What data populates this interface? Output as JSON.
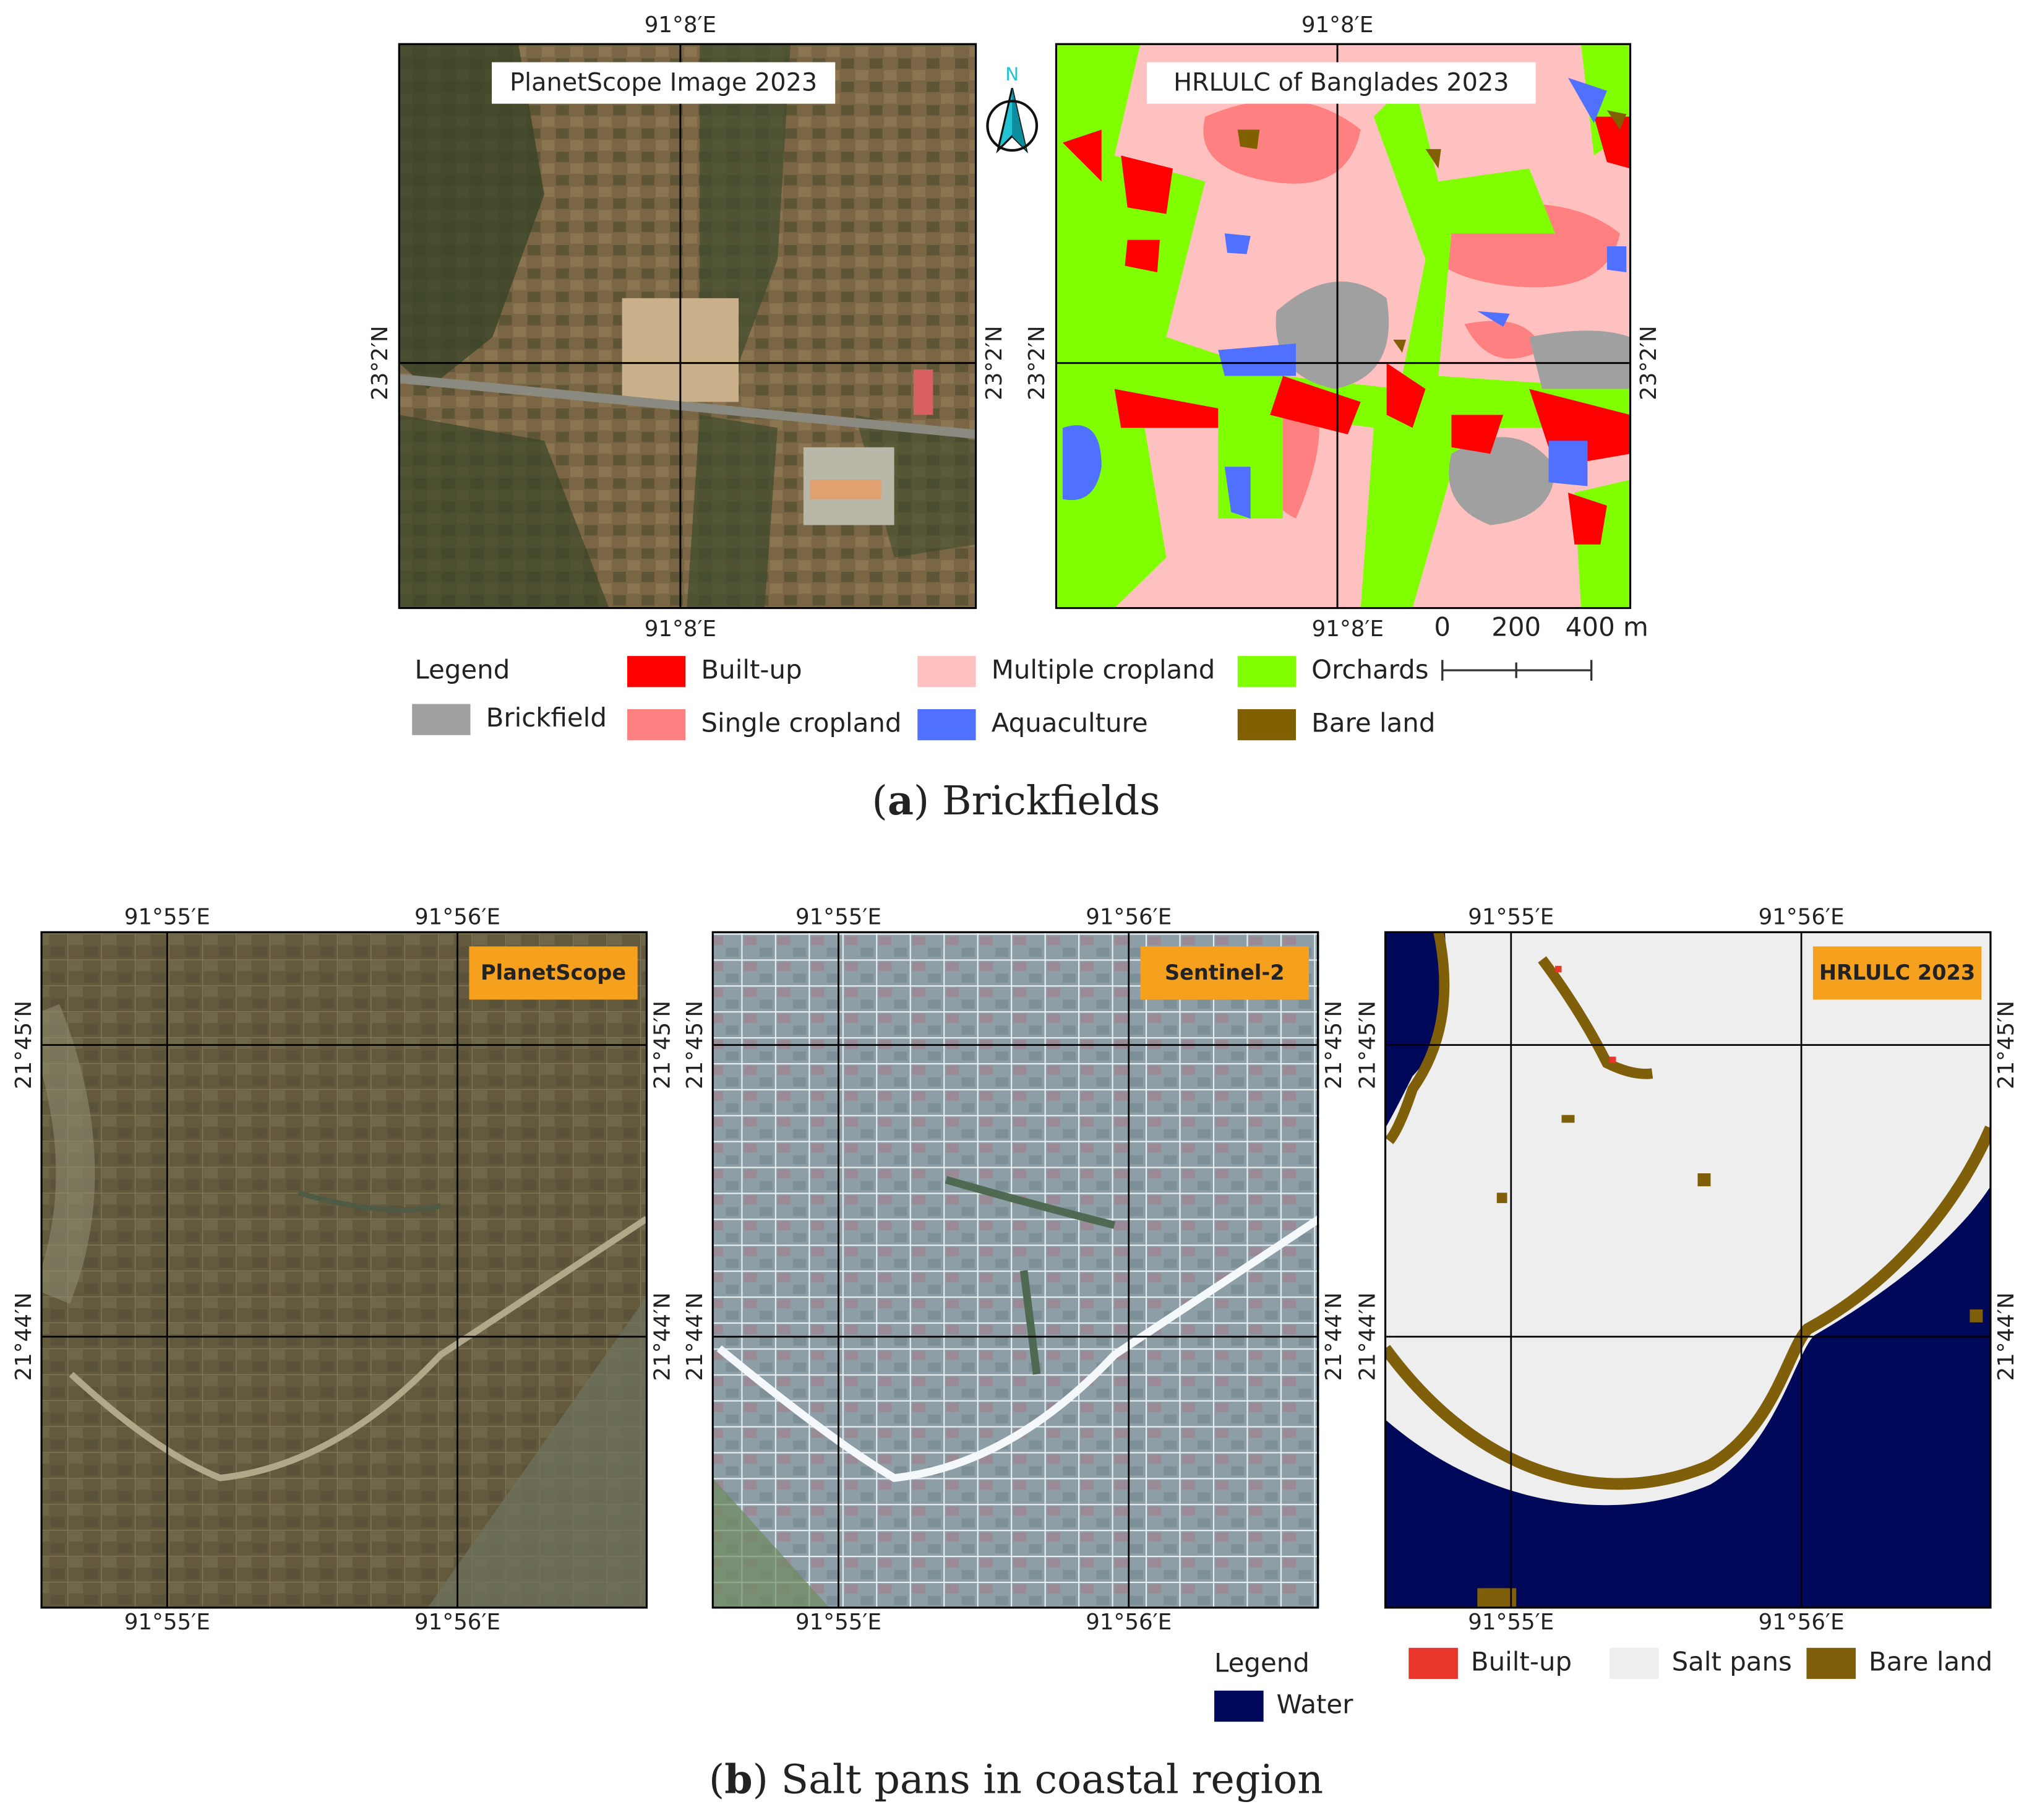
{
  "panel_a": {
    "maps": [
      {
        "title": "PlanetScope Image 2023",
        "top_label": "91°8′E",
        "bottom_label": "91°8′E",
        "left_label": "23°2′N",
        "right_label": "23°2′N"
      },
      {
        "title": "HRLULC of Banglades 2023",
        "top_label": "91°8′E",
        "bottom_label": "91°8′E",
        "left_label": "23°2′N",
        "right_label": "23°2′N"
      }
    ],
    "north_arrow": "N",
    "scale_bar": [
      "0",
      "200",
      "400 m"
    ],
    "legend": {
      "title": "Legend",
      "items": [
        {
          "label": "Built-up",
          "color": "#ff0000"
        },
        {
          "label": "Multiple cropland",
          "color": "#ffc0c0"
        },
        {
          "label": "Orchards",
          "color": "#80ff00"
        },
        {
          "label": "Brickfield",
          "color": "#a0a0a0"
        },
        {
          "label": "Single cropland",
          "color": "#ff8080"
        },
        {
          "label": "Aquaculture",
          "color": "#5070ff"
        },
        {
          "label": "Bare land",
          "color": "#806000"
        }
      ]
    },
    "caption": [
      "(",
      "a",
      ") Brickfields"
    ]
  },
  "panel_b": {
    "maps": [
      {
        "badge": "PlanetScope",
        "top_labels": [
          "91°55′E",
          "91°56′E"
        ],
        "bottom_labels": [
          "91°55′E",
          "91°56′E"
        ],
        "left_labels": [
          "21°45′N",
          "21°44′N"
        ],
        "right_labels": [
          "21°45′N",
          "21°44′N"
        ]
      },
      {
        "badge": "Sentinel-2",
        "top_labels": [
          "91°55′E",
          "91°56′E"
        ],
        "bottom_labels": [
          "91°55′E",
          "91°56′E"
        ],
        "left_labels": [
          "21°45′N",
          "21°44′N"
        ],
        "right_labels": [
          "21°45′N",
          "21°44′N"
        ]
      },
      {
        "badge": "HRLULC 2023",
        "top_labels": [
          "91°55′E",
          "91°56′E"
        ],
        "bottom_labels": [
          "91°55′E",
          "91°56′E"
        ],
        "left_labels": [
          "21°45′N",
          "21°44′N"
        ],
        "right_labels": [
          "21°45′N",
          "21°44′N"
        ]
      }
    ],
    "legend": {
      "title": "Legend",
      "items": [
        {
          "label": "Built-up",
          "color": "#e8362a"
        },
        {
          "label": "Salt pans",
          "color": "#eeeeee"
        },
        {
          "label": "Bare land",
          "color": "#7f5f0a"
        },
        {
          "label": "Water",
          "color": "#00085a"
        }
      ]
    },
    "caption": [
      "(",
      "b",
      ") Salt pans in coastal region"
    ]
  }
}
